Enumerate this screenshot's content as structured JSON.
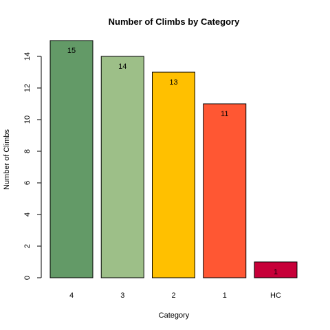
{
  "chart_data": {
    "type": "bar",
    "title": "Number of Climbs by Category",
    "xlabel": "Category",
    "ylabel": "Number of Climbs",
    "categories": [
      "4",
      "3",
      "2",
      "1",
      "HC"
    ],
    "values": [
      15,
      14,
      13,
      11,
      1
    ],
    "data_labels": [
      "15",
      "14",
      "13",
      "11",
      "1"
    ],
    "colors": [
      "#639a67",
      "#9dbf88",
      "#ffc000",
      "#ff5733",
      "#c70039"
    ],
    "ylim": [
      0,
      15
    ],
    "yticks": [
      0,
      2,
      4,
      6,
      8,
      10,
      12,
      14
    ],
    "ytick_labels": [
      "0",
      "2",
      "4",
      "6",
      "8",
      "10",
      "12",
      "14"
    ],
    "grid": false,
    "legend": "none"
  }
}
